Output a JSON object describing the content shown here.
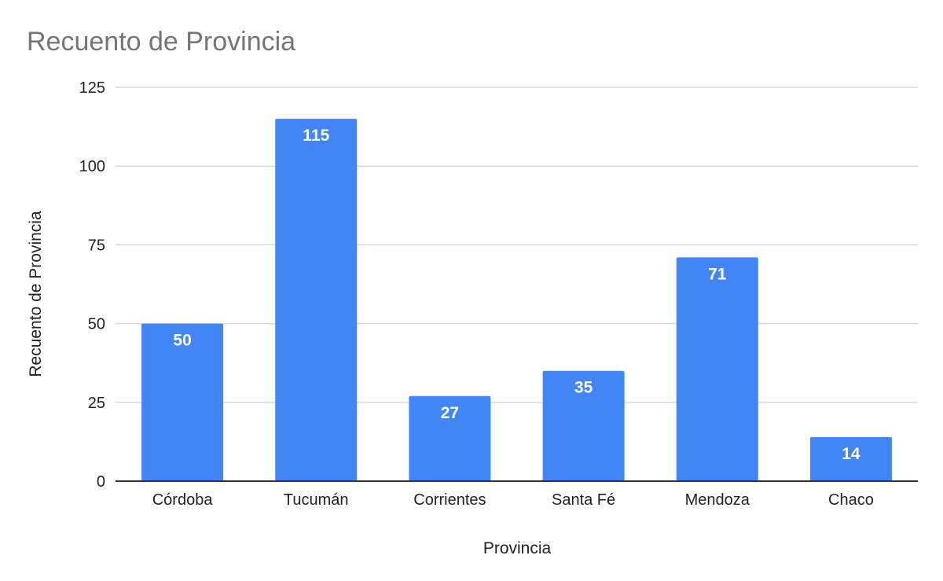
{
  "chart_data": {
    "type": "bar",
    "title": "Recuento de Provincia",
    "xlabel": "Provincia",
    "ylabel": "Recuento de Provincia",
    "categories": [
      "Córdoba",
      "Tucumán",
      "Corrientes",
      "Santa Fé",
      "Mendoza",
      "Chaco"
    ],
    "series": [
      {
        "values": [
          50,
          115,
          27,
          35,
          71,
          14
        ],
        "color": "#4285f4"
      }
    ],
    "data_labels": [
      "50",
      "115",
      "27",
      "35",
      "71",
      "14"
    ],
    "ylim": [
      0,
      125
    ],
    "yticks": [
      0,
      25,
      50,
      75,
      100,
      125
    ],
    "ytick_labels": [
      "0",
      "25",
      "50",
      "75",
      "100",
      "125"
    ],
    "grid": true,
    "legend": "none"
  }
}
